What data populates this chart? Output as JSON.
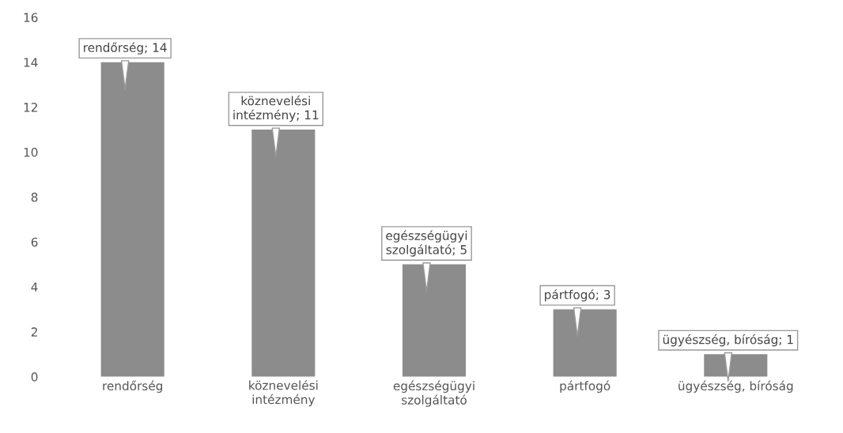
{
  "chart_data": {
    "type": "bar",
    "categories": [
      "rendőrség",
      "köznevelési\nintézmény",
      "egészségügyi\nszolgáltató",
      "pártfogó",
      "ügyészség, bíróság"
    ],
    "values": [
      14,
      11,
      5,
      3,
      1
    ],
    "value_labels": [
      "rendőrség; 14",
      "köznevelési\nintézmény; 11",
      "egészségügyi\nszolgáltató; 5",
      "pártfogó; 3",
      "ügyészség, bíróság; 1"
    ],
    "color": "#8c8c8c",
    "ylim": [
      0,
      16
    ],
    "yticks": [
      0,
      2,
      4,
      6,
      8,
      10,
      12,
      14,
      16
    ],
    "grid": false
  }
}
